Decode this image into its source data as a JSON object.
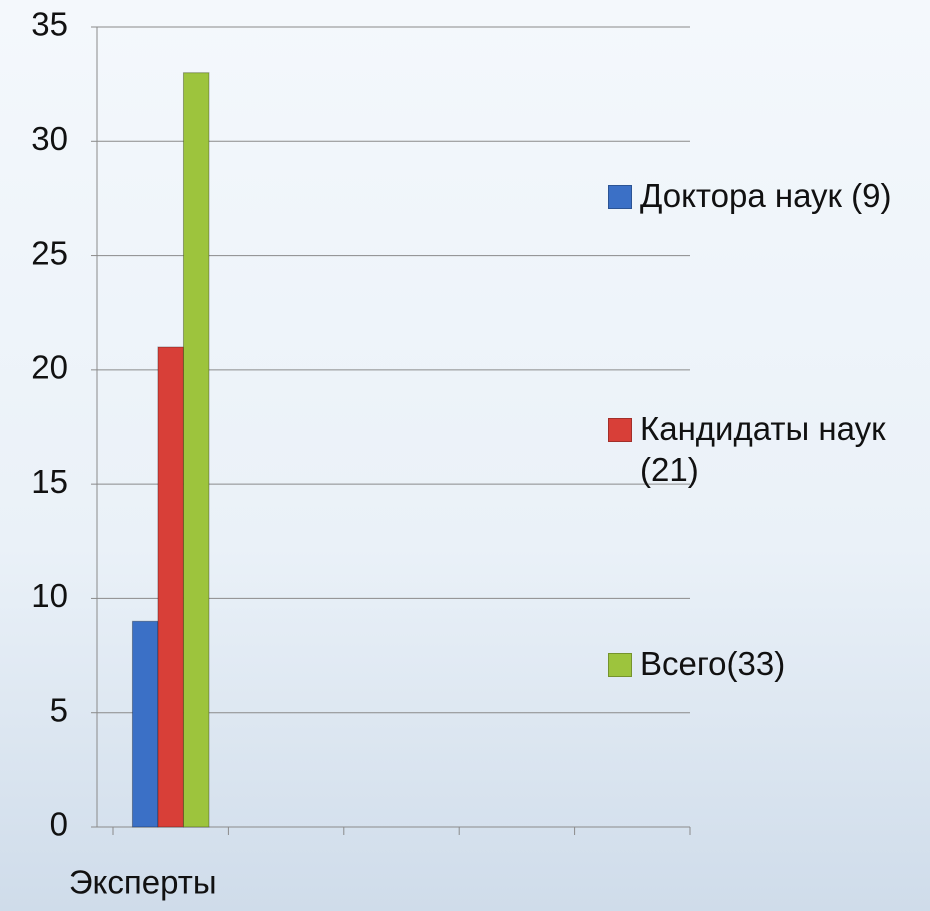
{
  "chart_data": {
    "type": "bar",
    "categories": [
      "Эксперты",
      null,
      null,
      null,
      null
    ],
    "series": [
      {
        "name": "Доктора наук (9)",
        "color": "#3b70c6",
        "values": [
          9,
          null,
          null,
          null,
          null
        ]
      },
      {
        "name": "Кандидаты наук (21)",
        "color": "#d83f38",
        "values": [
          21,
          null,
          null,
          null,
          null
        ]
      },
      {
        "name": "Всего(33)",
        "color": "#9dc43d",
        "values": [
          33,
          null,
          null,
          null,
          null
        ]
      }
    ],
    "ylim": [
      0,
      35
    ],
    "yticks": [
      0,
      5,
      10,
      15,
      20,
      25,
      30,
      35
    ],
    "grid": true,
    "legend": "right"
  }
}
